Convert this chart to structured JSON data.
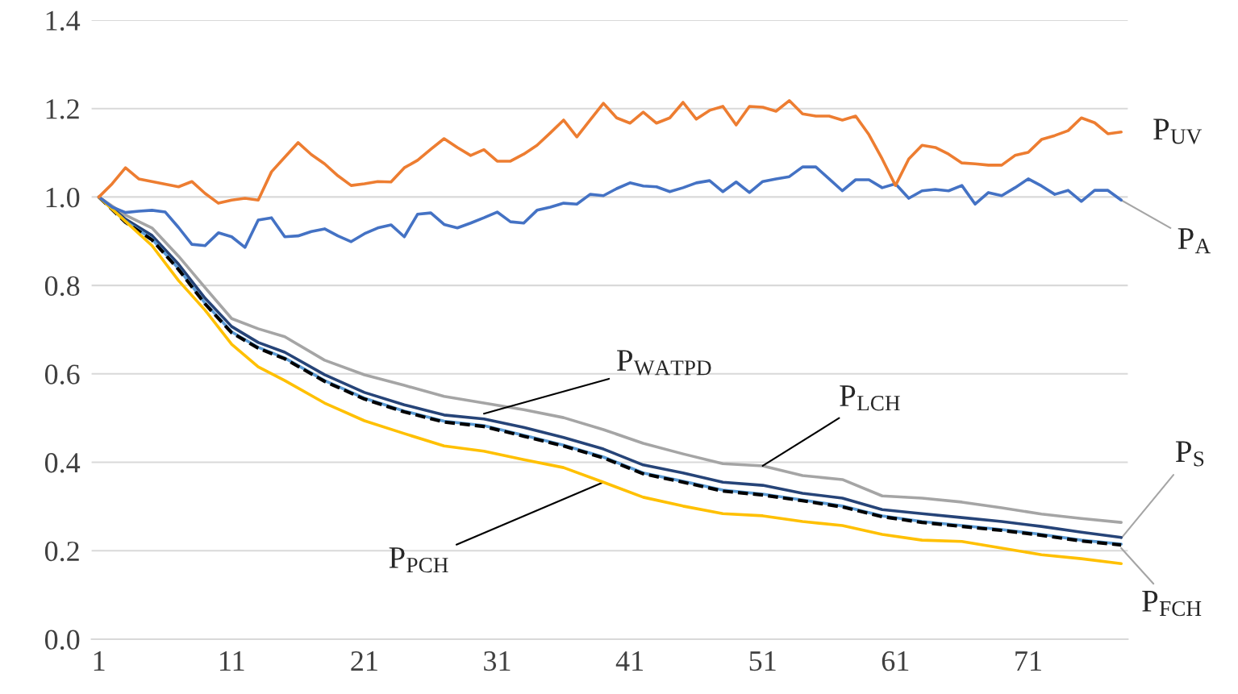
{
  "chart_data": {
    "type": "line",
    "xlim": [
      0.45,
      78.5
    ],
    "xticks": [
      1,
      11,
      21,
      31,
      41,
      51,
      61,
      71
    ],
    "ylim": [
      0,
      1.4
    ],
    "yticks": [
      {
        "value": 0,
        "label": "0.0"
      },
      {
        "value": 0.2,
        "label": "0.2"
      },
      {
        "value": 0.4,
        "label": "0.4"
      },
      {
        "value": 0.6,
        "label": "0.6"
      },
      {
        "value": 0.8,
        "label": "0.8"
      },
      {
        "value": 1.0,
        "label": "1.0"
      },
      {
        "value": 1.2,
        "label": "1.2"
      },
      {
        "value": 1.4,
        "label": "1.4"
      }
    ],
    "grid": "y",
    "legend": false,
    "marker": "none",
    "series": [
      {
        "color": "#a5a5a5",
        "x": [
          1,
          3,
          5,
          7,
          9,
          11,
          13,
          15,
          18,
          21,
          24,
          27,
          30,
          33,
          36,
          39,
          42,
          45,
          48,
          51,
          54,
          57,
          60,
          63,
          66,
          69,
          72,
          75,
          78
        ],
        "values": [
          1.0,
          0.959,
          0.93,
          0.866,
          0.795,
          0.725,
          0.702,
          0.684,
          0.631,
          0.598,
          0.574,
          0.549,
          0.534,
          0.519,
          0.501,
          0.474,
          0.443,
          0.419,
          0.397,
          0.392,
          0.37,
          0.361,
          0.324,
          0.319,
          0.31,
          0.297,
          0.283,
          0.273,
          0.264
        ]
      },
      {
        "color": "#264478",
        "x": [
          1,
          3,
          5,
          7,
          9,
          11,
          13,
          15,
          18,
          21,
          24,
          27,
          30,
          33,
          36,
          39,
          42,
          45,
          48,
          51,
          54,
          57,
          60,
          63,
          66,
          69,
          72,
          75,
          78
        ],
        "values": [
          1.0,
          0.95,
          0.913,
          0.848,
          0.771,
          0.707,
          0.671,
          0.649,
          0.598,
          0.558,
          0.53,
          0.507,
          0.498,
          0.479,
          0.456,
          0.43,
          0.394,
          0.376,
          0.355,
          0.348,
          0.33,
          0.319,
          0.293,
          0.284,
          0.275,
          0.266,
          0.255,
          0.242,
          0.23
        ]
      },
      {
        "color": "#5b9bd5",
        "x": [
          1,
          3,
          5,
          7,
          9,
          11,
          13,
          15,
          18,
          21,
          24,
          27,
          30,
          33,
          36,
          39,
          42,
          45,
          48,
          51,
          54,
          57,
          60,
          63,
          66,
          69,
          72,
          75,
          78
        ],
        "values": [
          1.0,
          0.945,
          0.905,
          0.838,
          0.76,
          0.695,
          0.66,
          0.636,
          0.585,
          0.545,
          0.516,
          0.493,
          0.483,
          0.461,
          0.439,
          0.412,
          0.376,
          0.357,
          0.337,
          0.328,
          0.315,
          0.301,
          0.279,
          0.266,
          0.257,
          0.248,
          0.237,
          0.224,
          0.215
        ]
      },
      {
        "color": "#000000",
        "line_style": "dashed",
        "x": [
          1,
          3,
          5,
          7,
          9,
          11,
          13,
          15,
          18,
          21,
          24,
          27,
          30,
          33,
          36,
          39,
          42,
          45,
          48,
          51,
          54,
          57,
          60,
          63,
          66,
          69,
          72,
          75,
          78
        ],
        "values": [
          1.0,
          0.943,
          0.903,
          0.836,
          0.758,
          0.693,
          0.658,
          0.634,
          0.583,
          0.543,
          0.514,
          0.491,
          0.481,
          0.459,
          0.437,
          0.41,
          0.374,
          0.355,
          0.335,
          0.326,
          0.313,
          0.299,
          0.277,
          0.264,
          0.255,
          0.246,
          0.235,
          0.222,
          0.213
        ]
      },
      {
        "color": "#ffc000",
        "x": [
          1,
          3,
          5,
          7,
          9,
          11,
          13,
          15,
          18,
          21,
          24,
          27,
          30,
          33,
          36,
          39,
          42,
          45,
          48,
          51,
          54,
          57,
          60,
          63,
          66,
          69,
          72,
          75,
          78
        ],
        "values": [
          1.0,
          0.945,
          0.89,
          0.811,
          0.744,
          0.667,
          0.616,
          0.585,
          0.534,
          0.494,
          0.465,
          0.437,
          0.425,
          0.406,
          0.388,
          0.355,
          0.321,
          0.301,
          0.284,
          0.279,
          0.266,
          0.257,
          0.237,
          0.224,
          0.221,
          0.206,
          0.191,
          0.182,
          0.171
        ]
      },
      {
        "color": "#4472c4",
        "x": [
          1,
          2,
          3,
          4,
          5,
          6,
          7,
          8,
          9,
          10,
          11,
          12,
          13,
          14,
          15,
          16,
          17,
          18,
          19,
          20,
          21,
          22,
          23,
          24,
          25,
          26,
          27,
          28,
          29,
          30,
          31,
          32,
          33,
          34,
          35,
          36,
          37,
          38,
          39,
          40,
          41,
          42,
          43,
          44,
          45,
          46,
          47,
          48,
          49,
          50,
          51,
          52,
          53,
          54,
          55,
          56,
          57,
          58,
          59,
          60,
          61,
          62,
          63,
          64,
          65,
          66,
          67,
          68,
          69,
          70,
          71,
          72,
          73,
          74,
          75,
          76,
          77,
          78
        ],
        "values": [
          1.0,
          0.977,
          0.965,
          0.968,
          0.97,
          0.966,
          0.931,
          0.893,
          0.89,
          0.919,
          0.91,
          0.886,
          0.948,
          0.953,
          0.91,
          0.912,
          0.922,
          0.928,
          0.912,
          0.899,
          0.917,
          0.93,
          0.937,
          0.91,
          0.961,
          0.964,
          0.938,
          0.93,
          0.941,
          0.953,
          0.966,
          0.944,
          0.941,
          0.97,
          0.977,
          0.986,
          0.984,
          1.006,
          1.003,
          1.019,
          1.032,
          1.025,
          1.023,
          1.012,
          1.021,
          1.032,
          1.037,
          1.012,
          1.034,
          1.01,
          1.035,
          1.041,
          1.046,
          1.068,
          1.068,
          1.041,
          1.014,
          1.039,
          1.039,
          1.021,
          1.03,
          0.997,
          1.014,
          1.017,
          1.014,
          1.026,
          0.984,
          1.01,
          1.003,
          1.021,
          1.041,
          1.025,
          1.006,
          1.015,
          0.99,
          1.015,
          1.015,
          0.993
        ]
      },
      {
        "color": "#ed7d31",
        "x": [
          1,
          2,
          3,
          4,
          5,
          6,
          7,
          8,
          9,
          10,
          11,
          12,
          13,
          14,
          15,
          16,
          17,
          18,
          19,
          20,
          21,
          22,
          23,
          24,
          25,
          26,
          27,
          28,
          29,
          30,
          31,
          32,
          33,
          34,
          35,
          36,
          37,
          38,
          39,
          40,
          41,
          42,
          43,
          44,
          45,
          46,
          47,
          48,
          49,
          50,
          51,
          52,
          53,
          54,
          55,
          56,
          57,
          58,
          59,
          60,
          61,
          62,
          63,
          64,
          65,
          66,
          67,
          68,
          69,
          70,
          71,
          72,
          73,
          74,
          75,
          76,
          77,
          78
        ],
        "values": [
          1.0,
          1.03,
          1.066,
          1.041,
          1.035,
          1.029,
          1.023,
          1.035,
          1.008,
          0.986,
          0.993,
          0.997,
          0.993,
          1.057,
          1.09,
          1.123,
          1.096,
          1.075,
          1.048,
          1.026,
          1.03,
          1.035,
          1.034,
          1.066,
          1.083,
          1.108,
          1.132,
          1.112,
          1.094,
          1.107,
          1.081,
          1.081,
          1.097,
          1.117,
          1.145,
          1.174,
          1.136,
          1.174,
          1.212,
          1.179,
          1.167,
          1.192,
          1.167,
          1.179,
          1.214,
          1.176,
          1.196,
          1.205,
          1.163,
          1.205,
          1.203,
          1.194,
          1.218,
          1.188,
          1.183,
          1.183,
          1.174,
          1.183,
          1.141,
          1.086,
          1.026,
          1.086,
          1.117,
          1.112,
          1.097,
          1.077,
          1.075,
          1.072,
          1.072,
          1.094,
          1.101,
          1.13,
          1.139,
          1.15,
          1.179,
          1.168,
          1.143,
          1.147
        ]
      }
    ],
    "annotations": [
      {
        "text": "P$_{UV}$",
        "x": 78,
        "y": 1.147
      },
      {
        "text": "P$_{A}$",
        "x": 78,
        "y": 0.993
      },
      {
        "text": "P$_{WATPD}$",
        "x": 30,
        "y": 0.51
      },
      {
        "text": "P$_{LCH}$",
        "x": 51,
        "y": 0.392
      },
      {
        "text": "P$_{PCH}$",
        "x": 39,
        "y": 0.355
      },
      {
        "text": "P$_{S}$",
        "x": 78,
        "y": 0.228
      },
      {
        "text": "P$_{FCH}$",
        "x": 78,
        "y": 0.206
      }
    ]
  }
}
